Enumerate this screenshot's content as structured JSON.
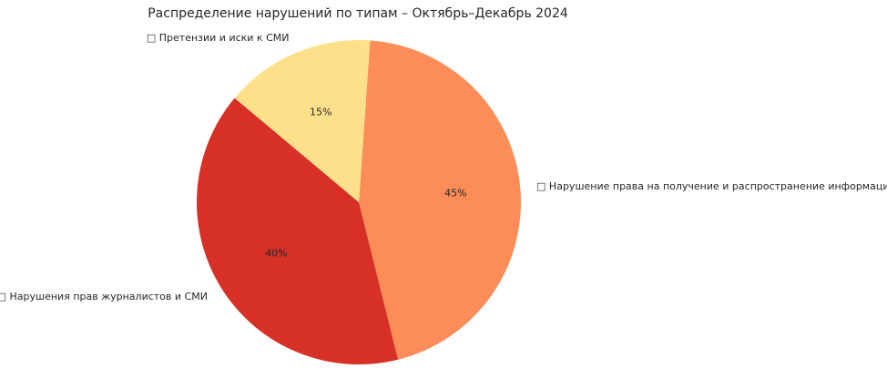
{
  "chart_data": {
    "type": "pie",
    "title": "Распределение нарушений по типам – Октябрь–Декабрь 2024",
    "categories": [
      "□ Нарушение права на получение и распространение информации",
      "□ Нарушения прав журналистов и СМИ",
      "□ Претензии и иски к СМИ"
    ],
    "values": [
      45,
      40,
      15
    ],
    "value_labels": [
      "45%",
      "40%",
      "15%"
    ],
    "colors": [
      "#fc8d59",
      "#d73027",
      "#fee08b"
    ]
  }
}
